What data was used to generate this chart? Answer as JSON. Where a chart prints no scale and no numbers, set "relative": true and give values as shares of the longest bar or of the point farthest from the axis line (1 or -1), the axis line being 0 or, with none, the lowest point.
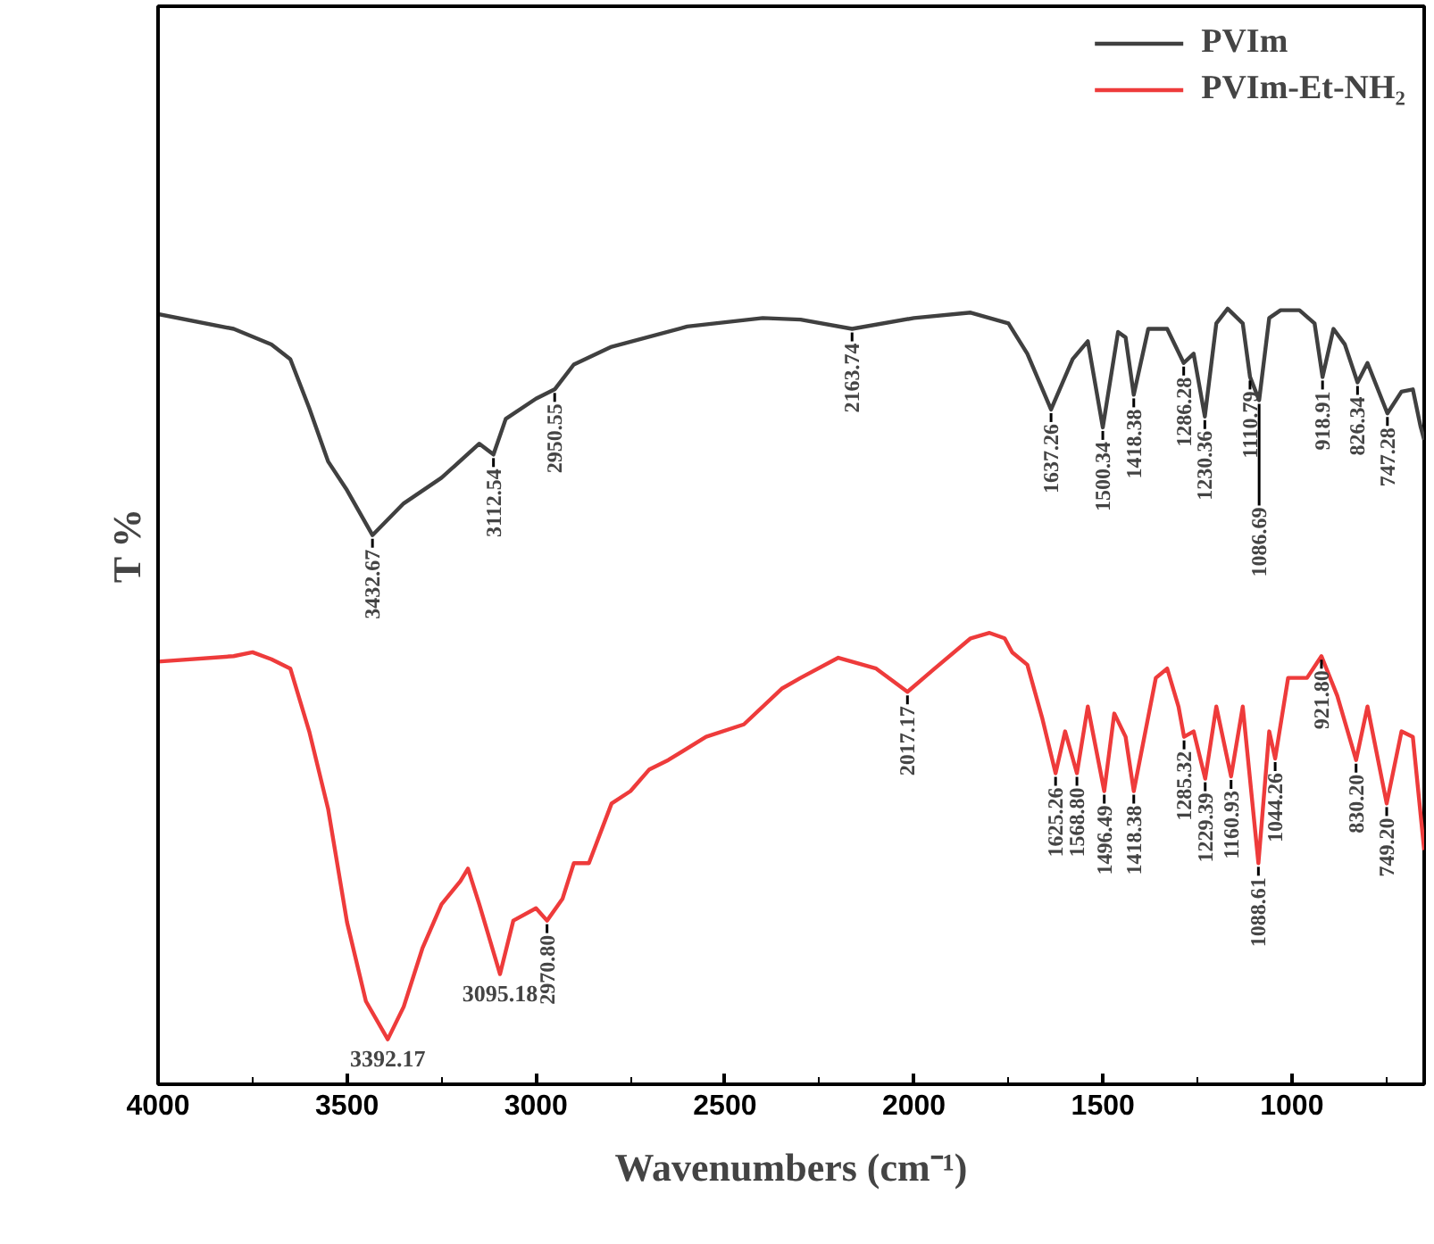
{
  "chart_data": {
    "type": "line",
    "relative": true,
    "xlabel": "Wavenumbers (cm⁻¹)",
    "ylabel": "T %",
    "xlim": [
      4000,
      650
    ],
    "xticks": [
      4000,
      3500,
      3000,
      2500,
      2000,
      1500,
      1000
    ],
    "legend": "top right",
    "grid": false,
    "marker": "none",
    "line_style": "solid",
    "series": [
      {
        "name": "PVIm",
        "color": "#404040",
        "x": [
          4000,
          3800,
          3700,
          3650,
          3600,
          3550,
          3500,
          3432.67,
          3350,
          3250,
          3150,
          3112.54,
          3080,
          3000,
          2950.55,
          2900,
          2800,
          2600,
          2400,
          2300,
          2163.74,
          2000,
          1850,
          1750,
          1700,
          1637.26,
          1580,
          1540,
          1500.34,
          1460,
          1440,
          1418.38,
          1380,
          1330,
          1286.28,
          1260,
          1230.36,
          1200,
          1170,
          1130,
          1110.79,
          1086.69,
          1060,
          1030,
          980,
          940,
          918.91,
          890,
          860,
          826.34,
          800,
          747.28,
          710,
          680,
          660,
          650
        ],
        "values": [
          0.993,
          0.974,
          0.954,
          0.935,
          0.872,
          0.803,
          0.766,
          0.708,
          0.749,
          0.782,
          0.826,
          0.812,
          0.858,
          0.884,
          0.896,
          0.928,
          0.951,
          0.977,
          0.988,
          0.986,
          0.974,
          0.988,
          0.995,
          0.981,
          0.942,
          0.87,
          0.935,
          0.958,
          0.847,
          0.97,
          0.963,
          0.889,
          0.974,
          0.974,
          0.93,
          0.942,
          0.861,
          0.981,
          1.0,
          0.981,
          0.912,
          0.882,
          0.988,
          0.998,
          0.998,
          0.981,
          0.912,
          0.974,
          0.954,
          0.905,
          0.93,
          0.865,
          0.893,
          0.896,
          0.849,
          0.831
        ]
      },
      {
        "name": "PVIm-Et-NH₂",
        "color": "#ee3b3b",
        "x": [
          4000,
          3800,
          3750,
          3700,
          3650,
          3600,
          3550,
          3500,
          3450,
          3392.17,
          3350,
          3300,
          3250,
          3200,
          3180,
          3150,
          3095.18,
          3060,
          3000,
          2970.8,
          2930,
          2900,
          2860,
          2800,
          2750,
          2700,
          2650,
          2550,
          2450,
          2350,
          2300,
          2200,
          2100,
          2017.17,
          1950,
          1850,
          1800,
          1760,
          1740,
          1700,
          1660,
          1625.26,
          1600,
          1568.8,
          1540,
          1496.49,
          1470,
          1440,
          1418.38,
          1360,
          1330,
          1300,
          1285.32,
          1260,
          1229.39,
          1200,
          1160.93,
          1130,
          1088.61,
          1060,
          1044.26,
          1010,
          960,
          921.8,
          880,
          830.2,
          800,
          749.2,
          710,
          680,
          650
        ],
        "values": [
          0.545,
          0.552,
          0.557,
          0.548,
          0.536,
          0.455,
          0.355,
          0.209,
          0.107,
          0.058,
          0.1,
          0.176,
          0.232,
          0.262,
          0.278,
          0.232,
          0.142,
          0.211,
          0.227,
          0.211,
          0.239,
          0.285,
          0.285,
          0.362,
          0.378,
          0.406,
          0.418,
          0.448,
          0.464,
          0.51,
          0.524,
          0.55,
          0.536,
          0.506,
          0.534,
          0.575,
          0.582,
          0.575,
          0.557,
          0.541,
          0.471,
          0.401,
          0.455,
          0.401,
          0.487,
          0.378,
          0.478,
          0.448,
          0.378,
          0.524,
          0.536,
          0.487,
          0.448,
          0.455,
          0.394,
          0.487,
          0.397,
          0.487,
          0.285,
          0.455,
          0.42,
          0.524,
          0.524,
          0.552,
          0.501,
          0.418,
          0.487,
          0.362,
          0.455,
          0.448,
          0.302
        ]
      }
    ],
    "annotations": [
      {
        "text": "3432.67",
        "x": 3432.67,
        "y": 0.708
      },
      {
        "text": "3112.54",
        "x": 3112.54,
        "y": 0.812
      },
      {
        "text": "2950.55",
        "x": 2950.55,
        "y": 0.896
      },
      {
        "text": "2163.74",
        "x": 2163.74,
        "y": 0.974
      },
      {
        "text": "1637.26",
        "x": 1637.26,
        "y": 0.87
      },
      {
        "text": "1500.34",
        "x": 1500.34,
        "y": 0.847
      },
      {
        "text": "1418.38",
        "x": 1418.38,
        "y": 0.889
      },
      {
        "text": "1286.28",
        "x": 1286.28,
        "y": 0.93
      },
      {
        "text": "1230.36",
        "x": 1230.36,
        "y": 0.861
      },
      {
        "text": "1110.79",
        "x": 1110.79,
        "y": 0.912
      },
      {
        "text": "1086.69",
        "x": 1086.69,
        "y": 0.882
      },
      {
        "text": "918.91",
        "x": 918.91,
        "y": 0.912
      },
      {
        "text": "826.34",
        "x": 826.34,
        "y": 0.905
      },
      {
        "text": "747.28",
        "x": 747.28,
        "y": 0.865
      },
      {
        "text": "3392.17",
        "x": 3392.17,
        "y": 0.058
      },
      {
        "text": "3095.18",
        "x": 3095.18,
        "y": 0.142
      },
      {
        "text": "2970.80",
        "x": 2970.8,
        "y": 0.211
      },
      {
        "text": "2017.17",
        "x": 2017.17,
        "y": 0.506
      },
      {
        "text": "1625.26",
        "x": 1625.26,
        "y": 0.401
      },
      {
        "text": "1568.80",
        "x": 1568.8,
        "y": 0.401
      },
      {
        "text": "1496.49",
        "x": 1496.49,
        "y": 0.378
      },
      {
        "text": "1418.38",
        "x": 1418.38,
        "y": 0.378
      },
      {
        "text": "1285.32",
        "x": 1285.32,
        "y": 0.448
      },
      {
        "text": "1229.39",
        "x": 1229.39,
        "y": 0.394
      },
      {
        "text": "1160.93",
        "x": 1160.93,
        "y": 0.397
      },
      {
        "text": "1088.61",
        "x": 1088.61,
        "y": 0.285
      },
      {
        "text": "1044.26",
        "x": 1044.26,
        "y": 0.42
      },
      {
        "text": "921.80",
        "x": 921.8,
        "y": 0.552
      },
      {
        "text": "830.20",
        "x": 830.2,
        "y": 0.418
      },
      {
        "text": "749.20",
        "x": 749.2,
        "y": 0.362
      }
    ]
  }
}
